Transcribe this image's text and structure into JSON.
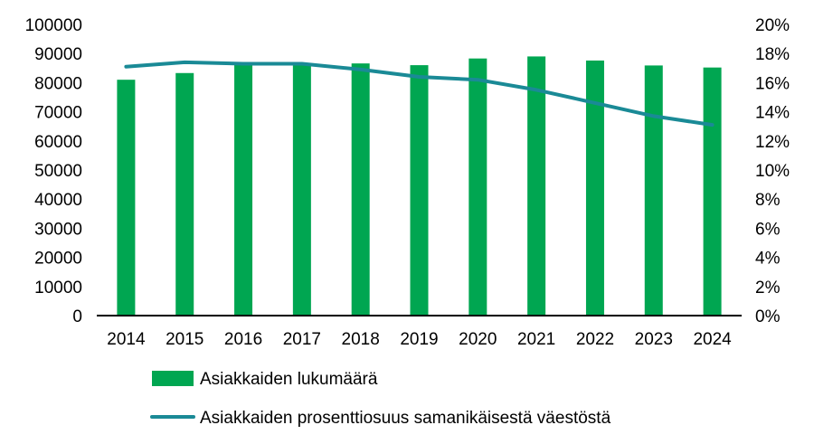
{
  "chart_data": {
    "type": "bar",
    "categories": [
      "2014",
      "2015",
      "2016",
      "2017",
      "2018",
      "2019",
      "2020",
      "2021",
      "2022",
      "2023",
      "2024"
    ],
    "series": [
      {
        "name": "Asiakkaiden lukumäärä",
        "type": "bar",
        "axis": "left",
        "color": "#00A651",
        "values": [
          81000,
          83300,
          86700,
          86700,
          86600,
          86000,
          88300,
          89000,
          87600,
          85900,
          85200
        ]
      },
      {
        "name": "Asiakkaiden prosenttiosuus samanikäisestä väestöstä",
        "type": "line",
        "axis": "right",
        "color": "#1A8A96",
        "values": [
          17.1,
          17.4,
          17.3,
          17.3,
          16.9,
          16.4,
          16.2,
          15.5,
          14.6,
          13.7,
          13.1
        ]
      }
    ],
    "left_axis": {
      "ylim": [
        0,
        100000
      ],
      "ticks": [
        "0",
        "10000",
        "20000",
        "30000",
        "40000",
        "50000",
        "60000",
        "70000",
        "80000",
        "90000",
        "100000"
      ]
    },
    "right_axis": {
      "ylim": [
        0,
        20
      ],
      "ticks": [
        "0%",
        "2%",
        "4%",
        "6%",
        "8%",
        "10%",
        "12%",
        "14%",
        "16%",
        "18%",
        "20%"
      ]
    },
    "grid": false,
    "legend_position": "bottom"
  }
}
